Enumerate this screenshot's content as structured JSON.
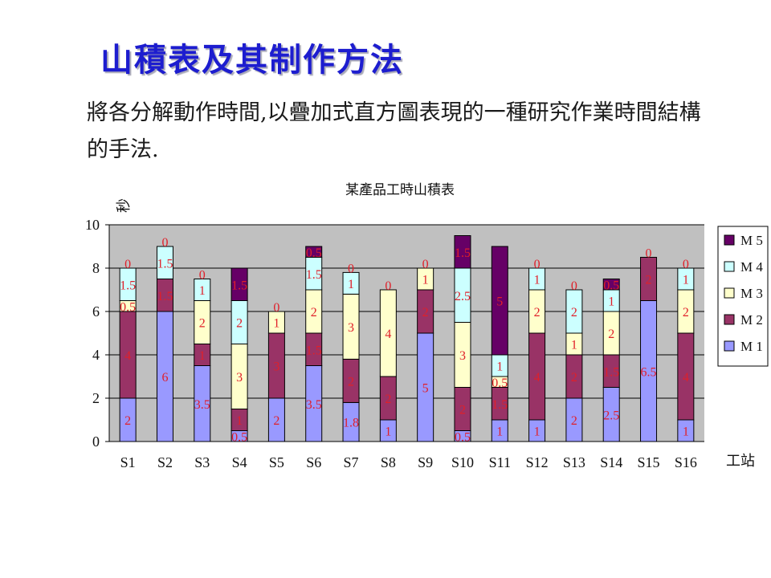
{
  "slide": {
    "title": "山積表及其制作方法",
    "body": "將各分解動作時間,以疊加式直方圖表現的一種研究作業時間結構的手法."
  },
  "chart_data": {
    "type": "bar",
    "stacked": true,
    "title": "某產品工時山積表",
    "xlabel": "工站",
    "ylabel": "秒",
    "ylim": [
      0,
      10
    ],
    "yticks": [
      0,
      2,
      4,
      6,
      8,
      10
    ],
    "grid": true,
    "legend_position": "right",
    "categories": [
      "S1",
      "S2",
      "S3",
      "S4",
      "S5",
      "S6",
      "S7",
      "S8",
      "S9",
      "S10",
      "S11",
      "S12",
      "S13",
      "S14",
      "S15",
      "S16"
    ],
    "series": [
      {
        "name": "M 1",
        "color": "#9999ff",
        "values": [
          2,
          6,
          3.5,
          0.5,
          2,
          3.5,
          1.8,
          1,
          5,
          0.5,
          1,
          1,
          2,
          2.5,
          6.5,
          1
        ]
      },
      {
        "name": "M 2",
        "color": "#993366",
        "values": [
          4,
          1.5,
          1,
          1,
          3,
          1.5,
          2,
          2,
          2,
          2,
          1.5,
          4,
          2,
          1.5,
          2,
          4
        ]
      },
      {
        "name": "M 3",
        "color": "#ffffcc",
        "values": [
          0.5,
          0,
          2,
          3,
          1,
          2,
          3,
          4,
          1,
          3,
          0.5,
          2,
          1,
          2,
          0,
          2
        ]
      },
      {
        "name": "M 4",
        "color": "#ccffff",
        "values": [
          1.5,
          1.5,
          1,
          2,
          0,
          1.5,
          1,
          0,
          0,
          2.5,
          1,
          1,
          2,
          1,
          0,
          1
        ]
      },
      {
        "name": "M 5",
        "color": "#660066",
        "values": [
          0,
          0,
          0,
          1.5,
          0,
          0.5,
          0,
          0,
          0,
          1.5,
          5,
          0,
          0,
          0.5,
          0,
          0
        ]
      }
    ],
    "data_labels": [
      [
        "2",
        "4",
        "0.5",
        "1.5",
        "0"
      ],
      [
        "6",
        "1.5",
        "",
        "1.5",
        "0"
      ],
      [
        "3.5",
        "1",
        "2",
        "1",
        "0"
      ],
      [
        "0.5",
        "1",
        "3",
        "2",
        "1.5"
      ],
      [
        "2",
        "3",
        "1",
        "",
        "0"
      ],
      [
        "3.5",
        "1.5",
        "2",
        "1.5",
        "0.5"
      ],
      [
        "1.8",
        "2",
        "3",
        "1",
        "0"
      ],
      [
        "1",
        "2",
        "4",
        "",
        "0"
      ],
      [
        "5",
        "2",
        "1",
        "",
        "0"
      ],
      [
        "0.5",
        "2",
        "3",
        "2.5",
        "1.5"
      ],
      [
        "1",
        "1.5",
        "0.5",
        "1",
        "5"
      ],
      [
        "1",
        "4",
        "2",
        "1",
        "0"
      ],
      [
        "2",
        "2",
        "1",
        "2",
        "0"
      ],
      [
        "2.5",
        "1.5",
        "2",
        "1",
        "0.5"
      ],
      [
        "6.5",
        "2",
        "",
        "",
        "0"
      ],
      [
        "1",
        "4",
        "2",
        "1",
        "0"
      ]
    ]
  }
}
